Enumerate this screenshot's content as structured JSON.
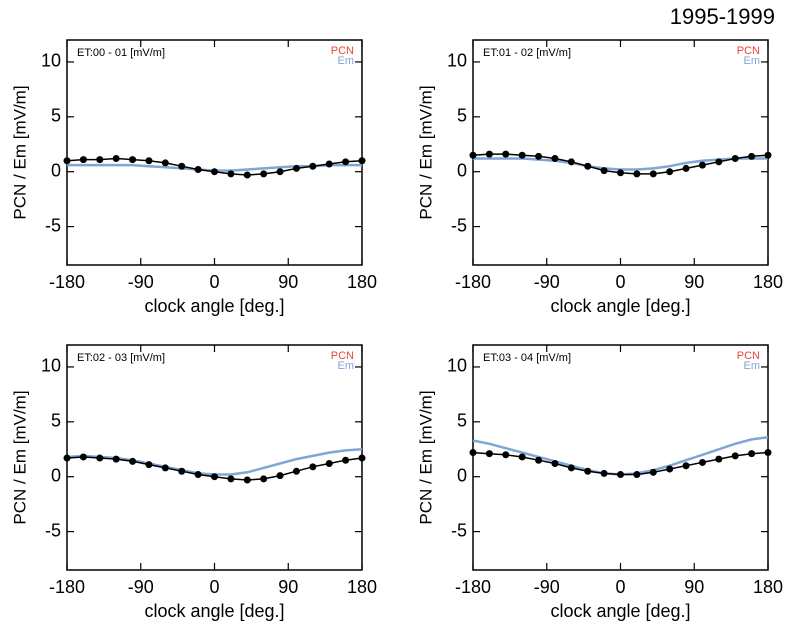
{
  "title": "1995-1999",
  "chart_data": [
    {
      "type": "line",
      "panel_label": "ET:00 - 01 [mV/m]",
      "xlabel": "clock angle [deg.]",
      "ylabel": "PCN / Em [mV/m]",
      "x": [
        -180,
        -160,
        -140,
        -120,
        -100,
        -80,
        -60,
        -40,
        -20,
        0,
        20,
        40,
        60,
        80,
        100,
        120,
        140,
        160,
        180
      ],
      "series": [
        {
          "name": "PCN",
          "color": "#e8443a",
          "line_color": "#000000",
          "markers": true,
          "values": [
            1.0,
            1.1,
            1.1,
            1.2,
            1.1,
            1.0,
            0.8,
            0.5,
            0.2,
            0.0,
            -0.2,
            -0.3,
            -0.2,
            0.0,
            0.3,
            0.5,
            0.7,
            0.9,
            1.0
          ]
        },
        {
          "name": "Em",
          "color": "#7fa6d6",
          "line_color": "#7fa6d6",
          "markers": false,
          "values": [
            0.6,
            0.6,
            0.6,
            0.6,
            0.6,
            0.5,
            0.4,
            0.3,
            0.2,
            0.1,
            0.1,
            0.2,
            0.3,
            0.4,
            0.5,
            0.5,
            0.6,
            0.6,
            0.6
          ]
        }
      ],
      "xlim": [
        -180,
        180
      ],
      "ylim": [
        -8.5,
        12
      ],
      "xticks": [
        -180,
        -90,
        0,
        90,
        180
      ],
      "yticks": [
        -5,
        0,
        5,
        10
      ]
    },
    {
      "type": "line",
      "panel_label": "ET:01 - 02 [mV/m]",
      "xlabel": "clock angle [deg.]",
      "ylabel": "PCN / Em [mV/m]",
      "x": [
        -180,
        -160,
        -140,
        -120,
        -100,
        -80,
        -60,
        -40,
        -20,
        0,
        20,
        40,
        60,
        80,
        100,
        120,
        140,
        160,
        180
      ],
      "series": [
        {
          "name": "PCN",
          "color": "#e8443a",
          "line_color": "#000000",
          "markers": true,
          "values": [
            1.5,
            1.6,
            1.6,
            1.5,
            1.4,
            1.2,
            0.9,
            0.5,
            0.1,
            -0.1,
            -0.2,
            -0.2,
            0.0,
            0.3,
            0.6,
            0.9,
            1.2,
            1.4,
            1.5
          ]
        },
        {
          "name": "Em",
          "color": "#7fa6d6",
          "line_color": "#7fa6d6",
          "markers": false,
          "values": [
            1.2,
            1.2,
            1.2,
            1.2,
            1.1,
            1.0,
            0.8,
            0.5,
            0.3,
            0.2,
            0.2,
            0.3,
            0.5,
            0.8,
            1.0,
            1.1,
            1.2,
            1.2,
            1.2
          ]
        }
      ],
      "xlim": [
        -180,
        180
      ],
      "ylim": [
        -8.5,
        12
      ],
      "xticks": [
        -180,
        -90,
        0,
        90,
        180
      ],
      "yticks": [
        -5,
        0,
        5,
        10
      ]
    },
    {
      "type": "line",
      "panel_label": "ET:02 - 03 [mV/m]",
      "xlabel": "clock angle [deg.]",
      "ylabel": "PCN / Em [mV/m]",
      "x": [
        -180,
        -160,
        -140,
        -120,
        -100,
        -80,
        -60,
        -40,
        -20,
        0,
        20,
        40,
        60,
        80,
        100,
        120,
        140,
        160,
        180
      ],
      "series": [
        {
          "name": "PCN",
          "color": "#e8443a",
          "line_color": "#000000",
          "markers": true,
          "values": [
            1.7,
            1.8,
            1.7,
            1.6,
            1.4,
            1.1,
            0.8,
            0.5,
            0.2,
            0.0,
            -0.2,
            -0.3,
            -0.2,
            0.1,
            0.5,
            0.9,
            1.2,
            1.5,
            1.7
          ]
        },
        {
          "name": "Em",
          "color": "#7fa6d6",
          "line_color": "#7fa6d6",
          "markers": false,
          "values": [
            1.8,
            1.9,
            1.8,
            1.7,
            1.5,
            1.2,
            0.9,
            0.6,
            0.3,
            0.2,
            0.2,
            0.4,
            0.8,
            1.2,
            1.6,
            1.9,
            2.2,
            2.4,
            2.5
          ]
        }
      ],
      "xlim": [
        -180,
        180
      ],
      "ylim": [
        -8.5,
        12
      ],
      "xticks": [
        -180,
        -90,
        0,
        90,
        180
      ],
      "yticks": [
        -5,
        0,
        5,
        10
      ]
    },
    {
      "type": "line",
      "panel_label": "ET:03 - 04 [mV/m]",
      "xlabel": "clock angle [deg.]",
      "ylabel": "PCN / Em [mV/m]",
      "x": [
        -180,
        -160,
        -140,
        -120,
        -100,
        -80,
        -60,
        -40,
        -20,
        0,
        20,
        40,
        60,
        80,
        100,
        120,
        140,
        160,
        180
      ],
      "series": [
        {
          "name": "PCN",
          "color": "#e8443a",
          "line_color": "#000000",
          "markers": true,
          "values": [
            2.2,
            2.1,
            2.0,
            1.8,
            1.5,
            1.2,
            0.8,
            0.5,
            0.3,
            0.2,
            0.2,
            0.4,
            0.7,
            1.0,
            1.3,
            1.6,
            1.9,
            2.1,
            2.2
          ]
        },
        {
          "name": "Em",
          "color": "#7fa6d6",
          "line_color": "#7fa6d6",
          "markers": false,
          "values": [
            3.3,
            3.0,
            2.6,
            2.2,
            1.8,
            1.4,
            1.0,
            0.6,
            0.3,
            0.2,
            0.3,
            0.6,
            1.0,
            1.5,
            2.0,
            2.5,
            3.0,
            3.4,
            3.6
          ]
        }
      ],
      "xlim": [
        -180,
        180
      ],
      "ylim": [
        -8.5,
        12
      ],
      "xticks": [
        -180,
        -90,
        0,
        90,
        180
      ],
      "yticks": [
        -5,
        0,
        5,
        10
      ]
    }
  ]
}
